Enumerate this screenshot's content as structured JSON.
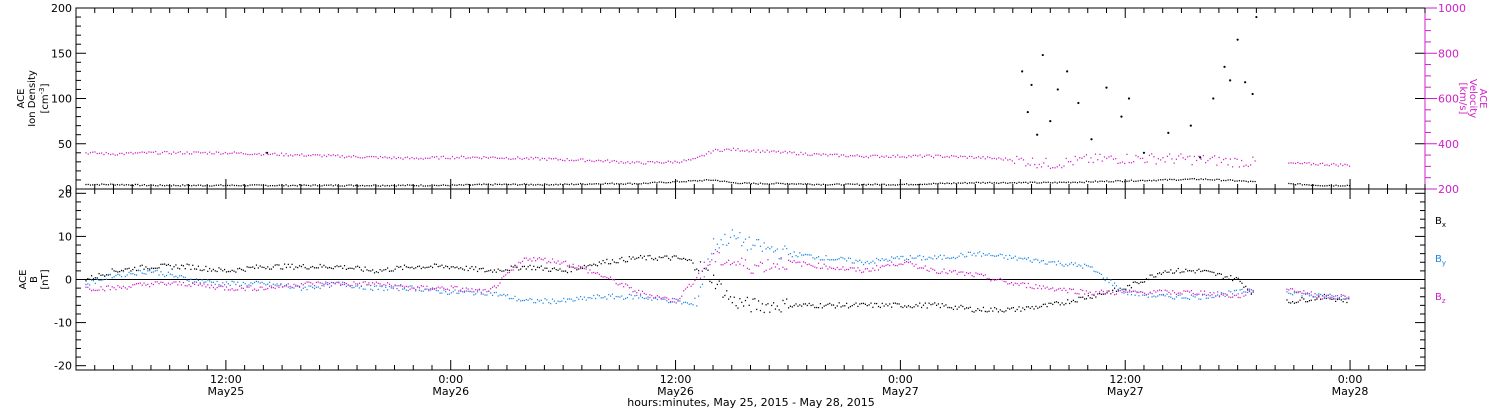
{
  "figure": {
    "xaxis_caption": "hours:minutes, May 25, 2015 - May 28, 2015",
    "x_ticks": [
      {
        "hour": 12,
        "time": "12:00",
        "date": "May25"
      },
      {
        "hour": 24,
        "time": "0:00",
        "date": "May26"
      },
      {
        "hour": 36,
        "time": "12:00",
        "date": "May26"
      },
      {
        "hour": 48,
        "time": "0:00",
        "date": "May27"
      },
      {
        "hour": 60,
        "time": "12:00",
        "date": "May27"
      },
      {
        "hour": 72,
        "time": "0:00",
        "date": "May28"
      }
    ],
    "x_range_hours": [
      4.0,
      76.0
    ]
  },
  "chart_data": [
    {
      "type": "scatter",
      "panel": "top",
      "left_axis": {
        "label_lines": [
          "ACE",
          "Ion Density"
        ],
        "unit_base": "[cm",
        "unit_sup": "-3",
        "unit_tail": "]",
        "range": [
          0,
          200
        ],
        "ticks": [
          "0",
          "50",
          "100",
          "150",
          "200"
        ],
        "tick_values": [
          0,
          50,
          100,
          150,
          200
        ],
        "color": "#000000"
      },
      "right_axis": {
        "label_lines": [
          "ACE",
          "Velocity",
          "[km/s]"
        ],
        "range": [
          200,
          1000
        ],
        "ticks": [
          "200",
          "400",
          "600",
          "800",
          "1000"
        ],
        "tick_values": [
          200,
          400,
          600,
          800,
          1000
        ],
        "color": "#d020c8"
      },
      "series": [
        {
          "axis": "left",
          "color": "#000000",
          "x": [
            4.5,
            6,
            8,
            10,
            12,
            14,
            16,
            18,
            20,
            22,
            24,
            26,
            28,
            30,
            32,
            34,
            36,
            37,
            38,
            39,
            40,
            42,
            44,
            46,
            48,
            50,
            52,
            54,
            56,
            58,
            60,
            62,
            64,
            66,
            67.5,
            70.5,
            72
          ],
          "y": [
            5,
            5,
            4,
            4,
            4,
            4,
            4,
            4,
            4,
            4,
            4,
            5,
            5,
            5,
            6,
            6,
            8,
            9,
            10,
            7,
            6,
            6,
            5,
            5,
            5,
            6,
            7,
            7,
            7,
            8,
            9,
            10,
            11,
            9,
            7,
            4,
            4
          ]
        },
        {
          "axis": "left",
          "color": "#000000",
          "x": [
            14.2,
            54.5,
            54.8,
            55.0,
            55.3,
            55.6,
            56.0,
            56.4,
            56.9,
            57.5,
            58.2,
            59.0,
            59.8,
            60.2,
            61.0,
            62.3,
            63.5,
            64.0,
            64.7,
            65.3,
            65.6,
            66.0,
            66.4,
            66.8,
            67.0
          ],
          "y": [
            40,
            130,
            85,
            115,
            60,
            148,
            75,
            110,
            130,
            95,
            55,
            112,
            80,
            100,
            40,
            62,
            70,
            35,
            100,
            135,
            120,
            165,
            118,
            105,
            190
          ]
        },
        {
          "axis": "right",
          "color": "#d020c8",
          "x": [
            4.5,
            6,
            8,
            10,
            12,
            14,
            16,
            18,
            20,
            22,
            24,
            26,
            28,
            30,
            32,
            34,
            36,
            37,
            38,
            39,
            40,
            42,
            44,
            46,
            48,
            50,
            52,
            54,
            55,
            56,
            57,
            58,
            60,
            62,
            64,
            66,
            67.5,
            70.5,
            72
          ],
          "y": [
            360,
            355,
            360,
            360,
            360,
            355,
            350,
            345,
            340,
            335,
            340,
            340,
            335,
            330,
            325,
            315,
            320,
            330,
            370,
            375,
            370,
            360,
            350,
            345,
            345,
            345,
            340,
            330,
            320,
            310,
            320,
            330,
            335,
            335,
            330,
            320,
            315,
            310,
            305
          ]
        }
      ]
    },
    {
      "type": "scatter",
      "panel": "bottom",
      "left_axis": {
        "label_lines": [
          "ACE",
          "B",
          "[nT]"
        ],
        "range": [
          -21,
          21
        ],
        "ticks": [
          "-20",
          "-10",
          "0",
          "10",
          "20"
        ],
        "tick_values": [
          -20,
          -10,
          0,
          10,
          20
        ],
        "color": "#000000"
      },
      "zero_line": true,
      "series": [
        {
          "name": "B",
          "sub": "x",
          "color": "#000000",
          "x": [
            4.5,
            6,
            8,
            10,
            12,
            14,
            16,
            18,
            20,
            22,
            24,
            26,
            28,
            30,
            32,
            34,
            36,
            37,
            38,
            39,
            40,
            42,
            44,
            46,
            48,
            50,
            52,
            54,
            56,
            58,
            60,
            62,
            64,
            66,
            67.5,
            70.5,
            72
          ],
          "y": [
            0,
            2,
            3,
            3,
            2,
            3,
            3,
            3,
            2,
            3,
            3,
            2,
            3,
            2,
            4,
            5,
            5,
            4,
            0,
            -5,
            -6,
            -6,
            -6,
            -6,
            -6,
            -6,
            -7,
            -7,
            -6,
            -4,
            -2,
            2,
            2,
            0,
            -6,
            -4,
            -5
          ]
        },
        {
          "name": "B",
          "sub": "y",
          "color": "#1e88e5",
          "x": [
            4.5,
            6,
            8,
            10,
            12,
            14,
            16,
            18,
            20,
            22,
            24,
            26,
            28,
            30,
            32,
            34,
            36,
            37,
            38,
            39,
            40,
            42,
            44,
            46,
            48,
            50,
            52,
            54,
            56,
            58,
            60,
            62,
            64,
            66,
            67.5,
            70.5,
            72
          ],
          "y": [
            -1,
            1,
            2,
            0,
            -1,
            -1,
            -2,
            -1,
            -2,
            -2,
            -3,
            -3,
            -5,
            -5,
            -4,
            -4,
            -5,
            -6,
            8,
            10,
            8,
            6,
            5,
            4,
            5,
            5,
            6,
            5,
            4,
            3,
            -3,
            -4,
            -4,
            -3,
            -2,
            -4,
            -4
          ]
        },
        {
          "name": "B",
          "sub": "z",
          "color": "#d020c8",
          "x": [
            4.5,
            6,
            8,
            10,
            12,
            14,
            16,
            18,
            20,
            22,
            24,
            26,
            28,
            30,
            32,
            34,
            36,
            37,
            38,
            39,
            40,
            42,
            44,
            46,
            48,
            50,
            52,
            54,
            56,
            58,
            60,
            62,
            64,
            66,
            67.5,
            70.5,
            72
          ],
          "y": [
            -2,
            -2,
            -1,
            -1,
            -2,
            -2,
            -1,
            -1,
            -1,
            -2,
            -2,
            -3,
            5,
            4,
            1,
            -3,
            -5,
            0,
            5,
            4,
            3,
            4,
            3,
            2,
            4,
            2,
            1,
            -1,
            -2,
            -3,
            -3,
            -3,
            -3,
            -4,
            -1,
            -4,
            -4
          ]
        }
      ]
    }
  ]
}
